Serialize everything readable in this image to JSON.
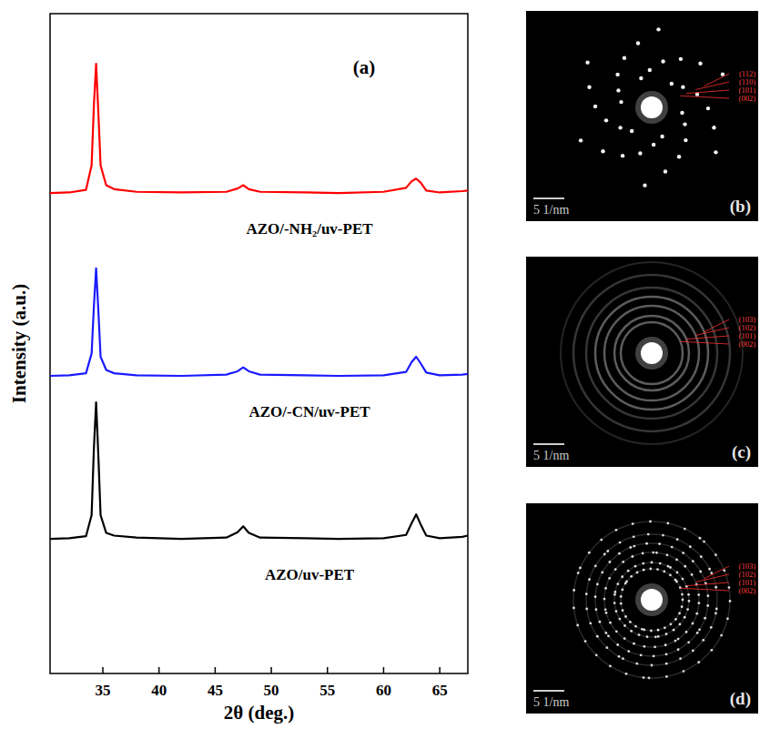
{
  "chart_data": [
    {
      "type": "line",
      "label": "(a)",
      "x_label": "2θ (deg.)",
      "y_label": "Intensity (a.u.)",
      "x": [
        30.3,
        32,
        33.5,
        34.0,
        34.2,
        34.4,
        34.6,
        34.8,
        35.3,
        36,
        38,
        42,
        46,
        47.0,
        47.5,
        48.0,
        49,
        53,
        56,
        60,
        62.0,
        62.5,
        62.9,
        63.3,
        63.8,
        65,
        67,
        67.5
      ],
      "series": [
        {
          "name": "AZO/uv-PET",
          "color": "#000000",
          "values": [
            20.4,
            20.5,
            20.8,
            24,
            34,
            41.1,
            33,
            24,
            21.3,
            20.9,
            20.6,
            20.4,
            20.6,
            21.4,
            22.3,
            21.3,
            20.6,
            20.5,
            20.4,
            20.5,
            21.0,
            22.8,
            24.1,
            22.6,
            20.9,
            20.5,
            20.7,
            20.9
          ]
        },
        {
          "name": "AZO/-CN/uv-PET",
          "color": "#1a1aff",
          "values": [
            45.1,
            45.2,
            45.5,
            48.5,
            55.5,
            61.4,
            55,
            48,
            46,
            45.5,
            45.2,
            45.1,
            45.3,
            45.8,
            46.4,
            45.8,
            45.3,
            45.2,
            45.1,
            45.2,
            45.7,
            47.2,
            48.0,
            47.0,
            45.6,
            45.2,
            45.3,
            45.4
          ]
        },
        {
          "name": "AZO/-NH₂/uv-PET",
          "color": "#ff0000",
          "values": [
            72.8,
            72.9,
            73.3,
            77,
            86,
            92.4,
            85,
            77,
            74,
            73.4,
            73.0,
            72.9,
            73.0,
            73.5,
            74.0,
            73.4,
            73.0,
            72.9,
            72.8,
            73.0,
            73.6,
            74.6,
            75.0,
            74.4,
            73.2,
            72.9,
            73.1,
            73.2
          ]
        }
      ],
      "xlim": [
        30.3,
        67.5
      ],
      "ylim": [
        0,
        100
      ],
      "xticks": [
        35,
        40,
        45,
        50,
        55,
        60,
        65
      ],
      "yticks": [],
      "tick_labels": "x"
    }
  ],
  "images": [
    {
      "label": "(b)",
      "scale_bar": "5 1/nm",
      "ring_labels": [
        "(112)",
        "(110)",
        "(101)",
        "(002)"
      ]
    },
    {
      "label": "(c)",
      "scale_bar": "5 1/nm",
      "ring_labels": [
        "(103)",
        "(102)",
        "(101)",
        "(002)"
      ]
    },
    {
      "label": "(d)",
      "scale_bar": "5 1/nm",
      "ring_labels": [
        "(103)",
        "(102)",
        "(101)",
        "(002)"
      ]
    }
  ]
}
